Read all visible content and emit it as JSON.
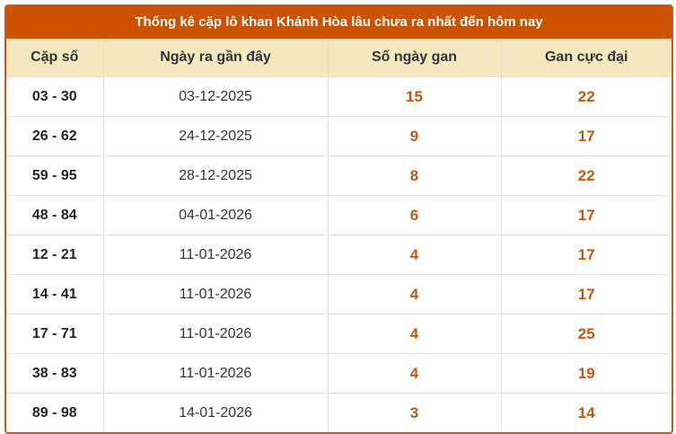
{
  "title": "Thống kê cặp lô khan Khánh Hòa lâu chưa ra nhất đến hôm nay",
  "headers": [
    "Cặp số",
    "Ngày ra gần đây",
    "Số ngày gan",
    "Gan cực đại"
  ],
  "colors": {
    "accent": "#cc5200",
    "header_bg": "#f7e7c1",
    "value": "#c2560f"
  },
  "rows": [
    [
      "03 - 30",
      "03-12-2025",
      "15",
      "22"
    ],
    [
      "26 - 62",
      "24-12-2025",
      "9",
      "17"
    ],
    [
      "59 - 95",
      "28-12-2025",
      "8",
      "22"
    ],
    [
      "48 - 84",
      "04-01-2026",
      "6",
      "17"
    ],
    [
      "12 - 21",
      "11-01-2026",
      "4",
      "17"
    ],
    [
      "14 - 41",
      "11-01-2026",
      "4",
      "17"
    ],
    [
      "17 - 71",
      "11-01-2026",
      "4",
      "25"
    ],
    [
      "38 - 83",
      "11-01-2026",
      "4",
      "19"
    ],
    [
      "89 - 98",
      "14-01-2026",
      "3",
      "14"
    ]
  ]
}
